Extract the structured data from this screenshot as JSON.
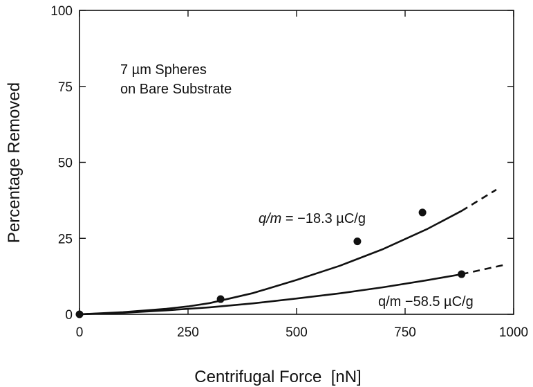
{
  "chart_data": {
    "type": "line",
    "xlabel": "Centrifugal Force  [nN]",
    "ylabel": "Percentage Removed",
    "xlim": [
      0,
      1000
    ],
    "ylim": [
      0,
      100
    ],
    "xticks": [
      "0",
      "250",
      "500",
      "750",
      "1000"
    ],
    "yticks": [
      "0",
      "25",
      "50",
      "75",
      "100"
    ],
    "grid": false,
    "legend": "none",
    "annotations": {
      "condition_line1": "7 µm Spheres",
      "condition_line2": "on Bare Substrate",
      "curve1_label_italic": "q/m",
      "curve1_label_rest": " = −18.3 µC/g",
      "curve2_label": "q/m −58.5 µC/g"
    },
    "series": [
      {
        "curve": "solid",
        "x": [
          0,
          100,
          200,
          250,
          300,
          400,
          500,
          600,
          700,
          800,
          880
        ],
        "y": [
          0,
          0.7,
          1.8,
          2.6,
          3.7,
          7.0,
          11.3,
          16.0,
          21.5,
          28.0,
          34.0
        ],
        "extrapolation": {
          "x": [
            880,
            960
          ],
          "y": [
            34.0,
            41.0
          ]
        }
      },
      {
        "curve": "solid",
        "x": [
          0,
          100,
          200,
          300,
          400,
          500,
          600,
          700,
          800,
          880
        ],
        "y": [
          0,
          0.5,
          1.3,
          2.3,
          3.6,
          5.2,
          6.9,
          8.9,
          11.2,
          13.2
        ],
        "extrapolation": {
          "x": [
            880,
            980
          ],
          "y": [
            13.2,
            16.3
          ]
        }
      }
    ],
    "points": [
      {
        "x": 0,
        "y": 0
      },
      {
        "x": 325,
        "y": 5
      },
      {
        "x": 640,
        "y": 24
      },
      {
        "x": 790,
        "y": 33.5
      },
      {
        "x": 880,
        "y": 13.2
      }
    ]
  }
}
